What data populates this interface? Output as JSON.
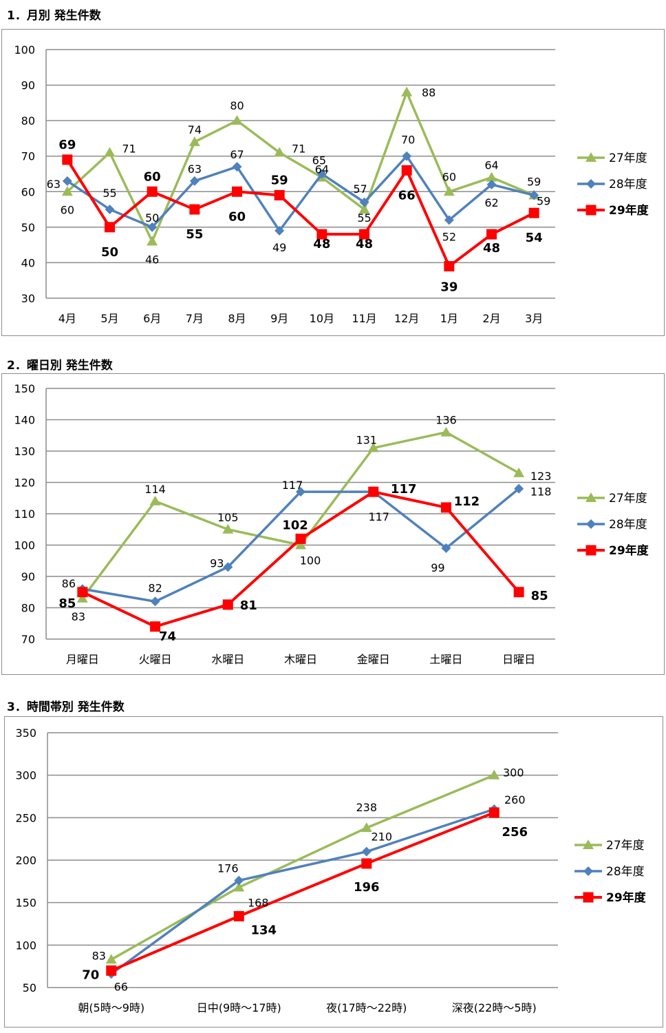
{
  "colors": {
    "s27": "#9bbb59",
    "s28": "#4f81bd",
    "s29": "#ff0000",
    "grid": "#8c8c8c"
  },
  "chart_data": [
    {
      "type": "line",
      "title": "1．月別 発生件数",
      "categories": [
        "4月",
        "5月",
        "6月",
        "7月",
        "8月",
        "9月",
        "10月",
        "11月",
        "12月",
        "1月",
        "2月",
        "3月"
      ],
      "ylim": [
        30,
        100
      ],
      "yticks": [
        30,
        40,
        50,
        60,
        70,
        80,
        90,
        100
      ],
      "grid": true,
      "legend": "right",
      "series": [
        {
          "name": "27年度",
          "values": [
            60,
            71,
            46,
            74,
            80,
            71,
            64,
            55,
            88,
            60,
            64,
            59
          ]
        },
        {
          "name": "28年度",
          "values": [
            63,
            55,
            50,
            63,
            67,
            49,
            65,
            57,
            70,
            52,
            62,
            59
          ]
        },
        {
          "name": "29年度",
          "values": [
            69,
            50,
            60,
            55,
            60,
            59,
            48,
            48,
            66,
            39,
            48,
            54
          ]
        }
      ]
    },
    {
      "type": "line",
      "title": "2．曜日別 発生件数",
      "categories": [
        "月曜日",
        "火曜日",
        "水曜日",
        "木曜日",
        "金曜日",
        "土曜日",
        "日曜日"
      ],
      "ylim": [
        70,
        150
      ],
      "yticks": [
        70,
        80,
        90,
        100,
        110,
        120,
        130,
        140,
        150
      ],
      "grid": true,
      "legend": "right",
      "series": [
        {
          "name": "27年度",
          "values": [
            83,
            114,
            105,
            100,
            131,
            136,
            123
          ]
        },
        {
          "name": "28年度",
          "values": [
            86,
            82,
            93,
            117,
            117,
            99,
            118
          ]
        },
        {
          "name": "29年度",
          "values": [
            85,
            74,
            81,
            102,
            117,
            112,
            85
          ]
        }
      ]
    },
    {
      "type": "line",
      "title": "3．時間帯別 発生件数",
      "categories": [
        "朝(5時～9時)",
        "日中(9時～17時)",
        "夜(17時～22時)",
        "深夜(22時～5時)"
      ],
      "ylim": [
        50,
        350
      ],
      "yticks": [
        50,
        100,
        150,
        200,
        250,
        300,
        350
      ],
      "grid": true,
      "legend": "right",
      "series": [
        {
          "name": "27年度",
          "values": [
            83,
            168,
            238,
            300
          ]
        },
        {
          "name": "28年度",
          "values": [
            66,
            176,
            210,
            260
          ]
        },
        {
          "name": "29年度",
          "values": [
            70,
            134,
            196,
            256
          ]
        }
      ]
    }
  ]
}
